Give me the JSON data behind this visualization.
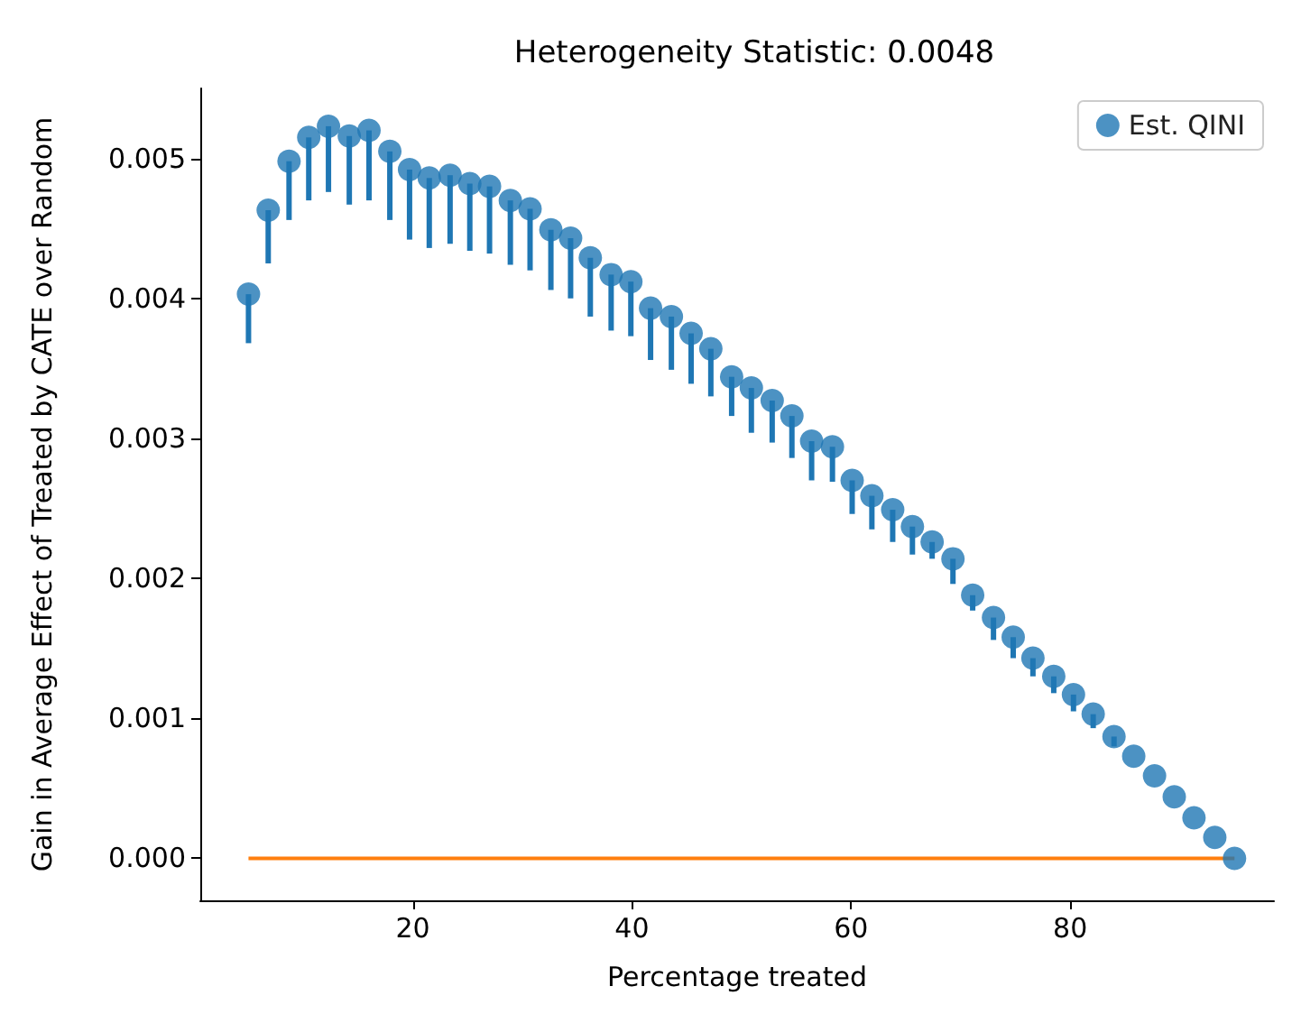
{
  "chart_data": {
    "type": "scatter",
    "title": "Heterogeneity Statistic: 0.0048",
    "xlabel": "Percentage treated",
    "ylabel": "Gain in Average Effect of Treated by CATE over Random",
    "x": [
      5,
      6.8,
      8.7,
      10.5,
      12.3,
      14.2,
      16.0,
      17.9,
      19.7,
      21.5,
      23.4,
      25.2,
      27.0,
      28.9,
      30.7,
      32.6,
      34.4,
      36.2,
      38.1,
      39.9,
      41.7,
      43.6,
      45.4,
      47.2,
      49.1,
      50.9,
      52.8,
      54.6,
      56.4,
      58.3,
      60.1,
      61.9,
      63.8,
      65.6,
      67.4,
      69.3,
      71.1,
      73.0,
      74.8,
      76.6,
      78.5,
      80.3,
      82.1,
      84.0,
      85.8,
      87.7,
      89.5,
      91.3,
      93.2,
      95.0
    ],
    "series": [
      {
        "name": "Est. QINI",
        "marker": "circle",
        "color": "#1f77b4",
        "values": [
          0.00403,
          0.00463,
          0.00498,
          0.00515,
          0.00523,
          0.00516,
          0.0052,
          0.00505,
          0.00492,
          0.00486,
          0.00488,
          0.00482,
          0.0048,
          0.0047,
          0.00464,
          0.00449,
          0.00443,
          0.00429,
          0.00417,
          0.00412,
          0.00393,
          0.00387,
          0.00375,
          0.00364,
          0.00344,
          0.00336,
          0.00327,
          0.00316,
          0.00298,
          0.00294,
          0.0027,
          0.00259,
          0.00249,
          0.00237,
          0.00226,
          0.00214,
          0.00188,
          0.00172,
          0.00158,
          0.00143,
          0.0013,
          0.00117,
          0.00103,
          0.00087,
          0.00073,
          0.00059,
          0.00044,
          0.00029,
          0.00015,
          0
        ],
        "errors": [
          [
            0.00368,
            0.00403
          ],
          [
            0.00425,
            0.00463
          ],
          [
            0.00456,
            0.00498
          ],
          [
            0.0047,
            0.00515
          ],
          [
            0.00476,
            0.00523
          ],
          [
            0.00467,
            0.00516
          ],
          [
            0.0047,
            0.0052
          ],
          [
            0.00456,
            0.00505
          ],
          [
            0.00442,
            0.00492
          ],
          [
            0.00436,
            0.00486
          ],
          [
            0.00439,
            0.00488
          ],
          [
            0.00434,
            0.00482
          ],
          [
            0.00432,
            0.0048
          ],
          [
            0.00424,
            0.0047
          ],
          [
            0.0042,
            0.00464
          ],
          [
            0.00406,
            0.00449
          ],
          [
            0.004,
            0.00443
          ],
          [
            0.00387,
            0.00429
          ],
          [
            0.00377,
            0.00417
          ],
          [
            0.00373,
            0.00412
          ],
          [
            0.00356,
            0.00393
          ],
          [
            0.00349,
            0.00387
          ],
          [
            0.00339,
            0.00375
          ],
          [
            0.0033,
            0.00364
          ],
          [
            0.00316,
            0.00344
          ],
          [
            0.00304,
            0.00336
          ],
          [
            0.00297,
            0.00327
          ],
          [
            0.00286,
            0.00316
          ],
          [
            0.0027,
            0.00298
          ],
          [
            0.00269,
            0.00294
          ],
          [
            0.00246,
            0.0027
          ],
          [
            0.00235,
            0.00259
          ],
          [
            0.00226,
            0.00249
          ],
          [
            0.00217,
            0.00237
          ],
          [
            0.00214,
            0.00226
          ],
          [
            0.00196,
            0.00214
          ],
          [
            0.00177,
            0.00188
          ],
          [
            0.00156,
            0.00172
          ],
          [
            0.00143,
            0.00158
          ],
          [
            0.0013,
            0.00143
          ],
          [
            0.00118,
            0.0013
          ],
          [
            0.00105,
            0.00117
          ],
          [
            0.00093,
            0.00103
          ],
          [
            0.0008,
            0.00087
          ],
          null,
          null,
          null,
          null,
          null,
          null
        ]
      },
      {
        "type": "line",
        "color": "#ff7f0e",
        "x": [
          5,
          95
        ],
        "values": [
          0,
          0
        ]
      }
    ],
    "legend": "top right",
    "grid": false,
    "xlim": [
      0.6,
      98.6
    ],
    "xticks": [
      20,
      40,
      60,
      80
    ],
    "ylim": [
      -0.0003,
      0.0055
    ],
    "yticks": [
      {
        "value": 0,
        "label": "0.000"
      },
      {
        "value": 0.001,
        "label": "0.001"
      },
      {
        "value": 0.002,
        "label": "0.002"
      },
      {
        "value": 0.003,
        "label": "0.003"
      },
      {
        "value": 0.004,
        "label": "0.004"
      },
      {
        "value": 0.005,
        "label": "0.005"
      }
    ]
  }
}
